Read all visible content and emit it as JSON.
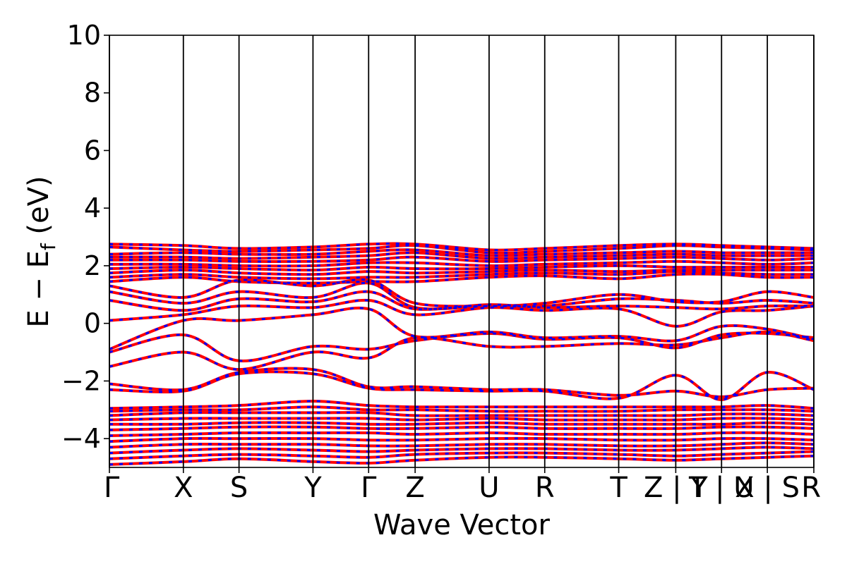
{
  "chart_data": {
    "type": "line",
    "title": "",
    "xlabel": "Wave Vector",
    "ylabel": "E − E_f (eV)",
    "ylabel_main": "E  −  E",
    "ylabel_sub": "f",
    "ylabel_tail": " (eV)",
    "ylim": [
      -5,
      10
    ],
    "yticks": [
      -4,
      -2,
      0,
      2,
      4,
      6,
      8,
      10
    ],
    "ytick_labels": [
      "−4",
      "−2",
      "0",
      "2",
      "4",
      "6",
      "8",
      "10"
    ],
    "xlim": [
      0,
      10
    ],
    "high_symmetry_points": [
      {
        "x": 0.0,
        "label": "Γ"
      },
      {
        "x": 1.05,
        "label": "X"
      },
      {
        "x": 1.84,
        "label": "S"
      },
      {
        "x": 2.89,
        "label": "Y"
      },
      {
        "x": 3.68,
        "label": "Γ"
      },
      {
        "x": 4.34,
        "label": "Z"
      },
      {
        "x": 5.39,
        "label": "U"
      },
      {
        "x": 6.18,
        "label": "R"
      },
      {
        "x": 7.23,
        "label": "T"
      },
      {
        "x": 8.04,
        "label": "Z | Y"
      },
      {
        "x": 8.69,
        "label": "T | U"
      },
      {
        "x": 9.34,
        "label": "X | S"
      },
      {
        "x": 10.0,
        "label": "R"
      }
    ],
    "hs_labels_printed": [
      {
        "text": "Γ",
        "x": 0.0
      },
      {
        "text": "X",
        "x": 1.05
      },
      {
        "text": "S",
        "x": 1.84
      },
      {
        "text": "Y",
        "x": 2.89
      },
      {
        "text": "Γ",
        "x": 3.68
      },
      {
        "text": "Z",
        "x": 4.34
      },
      {
        "text": "U",
        "x": 5.39
      },
      {
        "text": "R",
        "x": 6.18
      },
      {
        "text": "T",
        "x": 7.23
      },
      {
        "text": "Z | Y",
        "x": 8.04
      },
      {
        "text": "T | U",
        "x": 8.69
      },
      {
        "text": "X | S",
        "x": 9.34
      },
      {
        "text": "R",
        "x": 10.0
      }
    ],
    "series": [
      {
        "color": "#ff0000",
        "dash": "solid"
      },
      {
        "color": "#0000ff",
        "dash": "dashed"
      }
    ],
    "bands": [
      [
        2.75,
        2.7,
        2.6,
        2.65,
        2.75,
        2.75,
        2.55,
        2.6,
        2.7,
        2.75,
        2.7,
        2.65,
        2.6
      ],
      [
        2.65,
        2.55,
        2.5,
        2.55,
        2.6,
        2.7,
        2.45,
        2.5,
        2.6,
        2.7,
        2.65,
        2.6,
        2.55
      ],
      [
        2.4,
        2.45,
        2.4,
        2.4,
        2.5,
        2.55,
        2.35,
        2.4,
        2.45,
        2.5,
        2.45,
        2.45,
        2.45
      ],
      [
        2.3,
        2.3,
        2.25,
        2.3,
        2.35,
        2.45,
        2.25,
        2.3,
        2.35,
        2.4,
        2.35,
        2.35,
        2.35
      ],
      [
        2.2,
        2.2,
        2.15,
        2.15,
        2.2,
        2.3,
        2.15,
        2.2,
        2.25,
        2.3,
        2.25,
        2.2,
        2.25
      ],
      [
        2.05,
        2.05,
        2.0,
        2.0,
        2.1,
        2.1,
        2.0,
        2.05,
        2.1,
        2.15,
        2.1,
        2.05,
        2.1
      ],
      [
        1.9,
        1.95,
        1.9,
        1.85,
        1.95,
        1.9,
        1.9,
        1.95,
        2.0,
        1.95,
        1.95,
        1.95,
        1.95
      ],
      [
        1.75,
        1.85,
        1.75,
        1.7,
        1.8,
        1.75,
        1.8,
        1.85,
        1.8,
        1.85,
        1.85,
        1.85,
        1.85
      ],
      [
        1.6,
        1.7,
        1.6,
        1.55,
        1.6,
        1.6,
        1.7,
        1.75,
        1.7,
        1.8,
        1.75,
        1.7,
        1.7
      ],
      [
        1.45,
        1.6,
        1.45,
        1.4,
        1.45,
        1.45,
        1.6,
        1.65,
        1.55,
        1.7,
        1.7,
        1.6,
        1.6
      ],
      [
        1.3,
        0.9,
        1.5,
        1.3,
        1.5,
        0.7,
        0.6,
        0.7,
        1.0,
        0.75,
        0.75,
        1.1,
        0.9
      ],
      [
        1.1,
        0.7,
        1.1,
        0.9,
        1.4,
        0.55,
        0.6,
        0.6,
        0.85,
        0.8,
        0.7,
        0.8,
        0.7
      ],
      [
        0.8,
        0.45,
        0.85,
        0.75,
        1.1,
        0.5,
        0.65,
        0.55,
        0.6,
        0.55,
        0.5,
        0.6,
        0.6
      ],
      [
        0.1,
        0.3,
        0.6,
        0.55,
        0.8,
        0.3,
        0.55,
        0.45,
        0.5,
        -0.1,
        0.4,
        0.45,
        0.6
      ],
      [
        -0.9,
        0.1,
        0.1,
        0.3,
        0.5,
        -0.45,
        -0.3,
        -0.5,
        -0.45,
        -0.6,
        -0.1,
        -0.2,
        -0.55
      ],
      [
        -1.0,
        -0.4,
        -1.3,
        -0.8,
        -0.9,
        -0.6,
        -0.35,
        -0.55,
        -0.5,
        -0.85,
        -0.4,
        -0.35,
        -0.5
      ],
      [
        -1.5,
        -1.0,
        -1.6,
        -1.0,
        -1.2,
        -0.5,
        -0.8,
        -0.8,
        -0.7,
        -0.75,
        -0.5,
        -0.3,
        -0.6
      ],
      [
        -2.1,
        -2.3,
        -1.7,
        -1.6,
        -2.2,
        -2.2,
        -2.3,
        -2.3,
        -2.5,
        -2.35,
        -2.55,
        -2.3,
        -2.25
      ],
      [
        -2.3,
        -2.35,
        -1.75,
        -1.75,
        -2.25,
        -2.3,
        -2.35,
        -2.35,
        -2.6,
        -1.8,
        -2.65,
        -1.7,
        -2.3
      ],
      [
        -2.95,
        -2.9,
        -2.85,
        -2.7,
        -2.85,
        -2.9,
        -2.9,
        -2.9,
        -2.9,
        -2.9,
        -2.9,
        -2.85,
        -2.95
      ],
      [
        -3.05,
        -3.0,
        -3.0,
        -2.9,
        -3.0,
        -3.0,
        -3.05,
        -3.05,
        -3.05,
        -3.0,
        -3.0,
        -3.0,
        -3.05
      ],
      [
        -3.2,
        -3.1,
        -3.1,
        -3.1,
        -3.1,
        -3.2,
        -3.2,
        -3.2,
        -3.2,
        -3.2,
        -3.15,
        -3.15,
        -3.2
      ],
      [
        -3.35,
        -3.3,
        -3.3,
        -3.3,
        -3.3,
        -3.35,
        -3.3,
        -3.35,
        -3.35,
        -3.35,
        -3.3,
        -3.3,
        -3.35
      ],
      [
        -3.5,
        -3.5,
        -3.45,
        -3.45,
        -3.5,
        -3.5,
        -3.45,
        -3.5,
        -3.5,
        -3.5,
        -3.5,
        -3.45,
        -3.5
      ],
      [
        -3.7,
        -3.65,
        -3.6,
        -3.6,
        -3.65,
        -3.65,
        -3.6,
        -3.65,
        -3.65,
        -3.65,
        -3.6,
        -3.6,
        -3.65
      ],
      [
        -3.9,
        -3.85,
        -3.8,
        -3.8,
        -3.8,
        -3.85,
        -3.8,
        -3.85,
        -3.85,
        -3.85,
        -3.8,
        -3.8,
        -3.85
      ],
      [
        -4.1,
        -4.0,
        -4.0,
        -4.0,
        -4.05,
        -4.05,
        -4.0,
        -4.0,
        -4.05,
        -4.05,
        -4.0,
        -4.0,
        -4.05
      ],
      [
        -4.3,
        -4.2,
        -4.2,
        -4.2,
        -4.25,
        -4.25,
        -4.2,
        -4.2,
        -4.25,
        -4.25,
        -4.2,
        -4.15,
        -4.2
      ],
      [
        -4.5,
        -4.4,
        -4.35,
        -4.4,
        -4.45,
        -4.4,
        -4.35,
        -4.35,
        -4.4,
        -4.4,
        -4.35,
        -4.3,
        -4.35
      ],
      [
        -4.7,
        -4.6,
        -4.55,
        -4.6,
        -4.65,
        -4.55,
        -4.5,
        -4.5,
        -4.55,
        -4.6,
        -4.55,
        -4.5,
        -4.45
      ],
      [
        -4.9,
        -4.8,
        -4.7,
        -4.8,
        -4.85,
        -4.75,
        -4.65,
        -4.65,
        -4.7,
        -4.75,
        -4.7,
        -4.65,
        -4.6
      ]
    ]
  }
}
